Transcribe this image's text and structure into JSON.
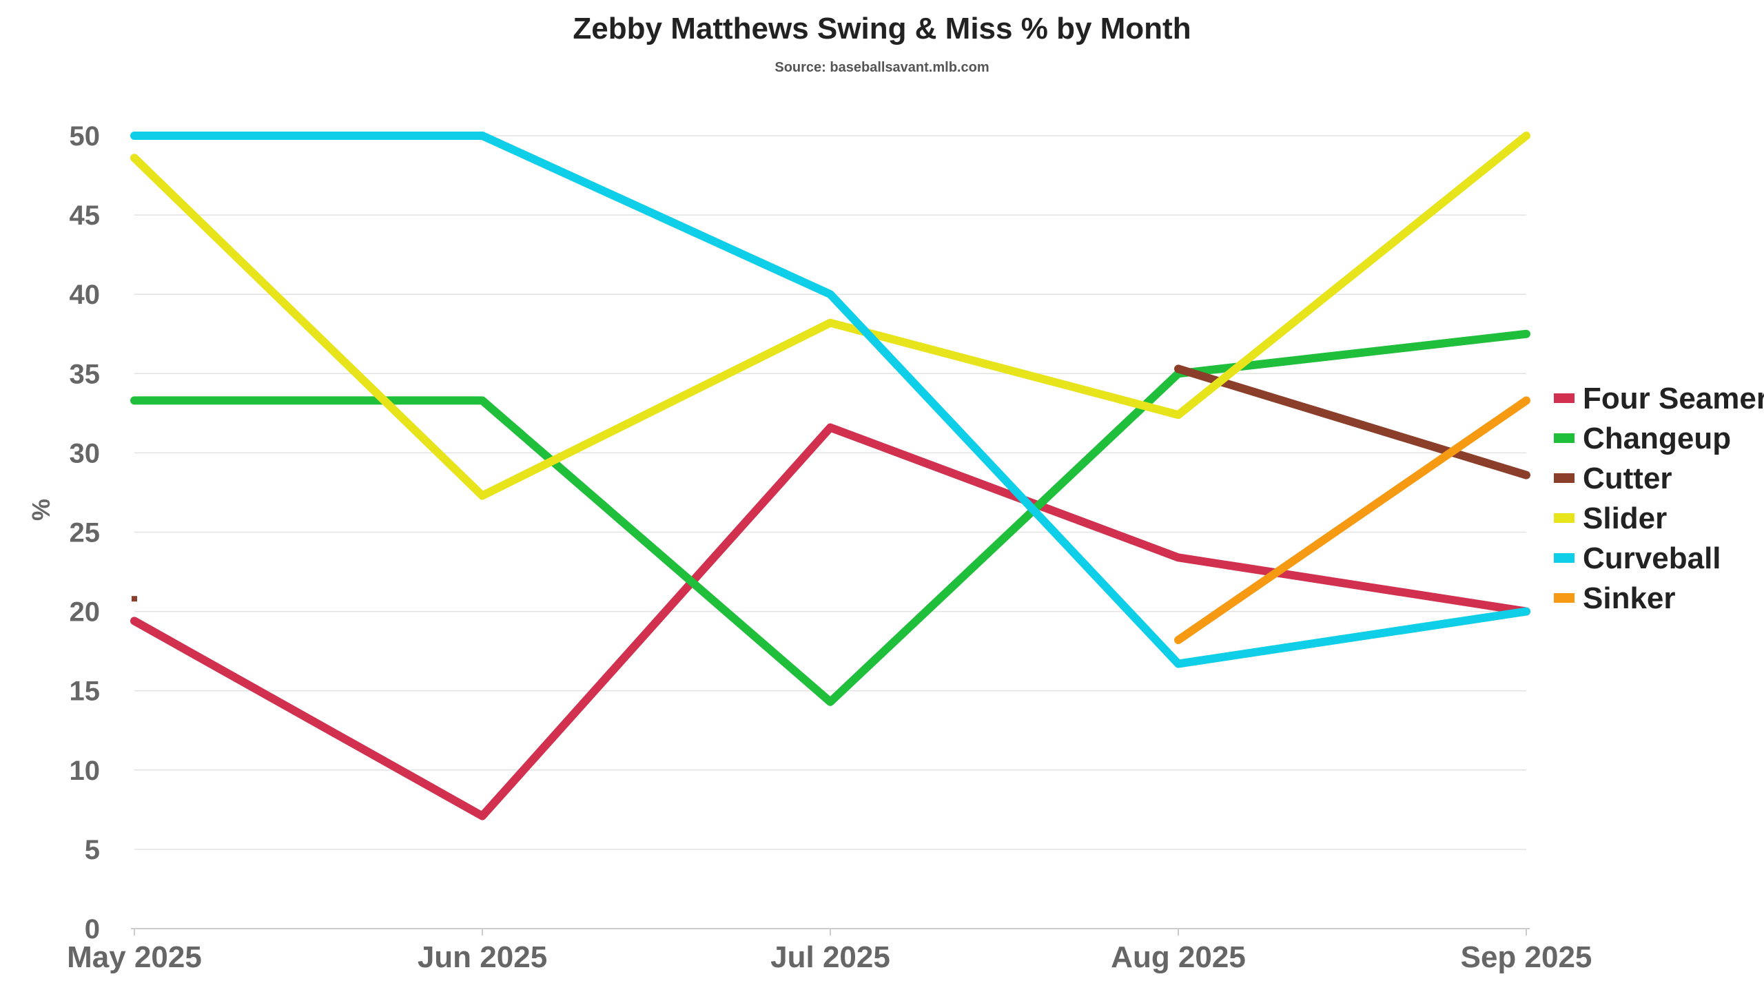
{
  "chart_data": {
    "type": "line",
    "title": "Zebby Matthews Swing & Miss % by Month",
    "subtitle": "Source: baseballsavant.mlb.com",
    "xlabel": "",
    "ylabel": "%",
    "categories": [
      "May 2025",
      "Jun 2025",
      "Jul 2025",
      "Aug 2025",
      "Sep 2025"
    ],
    "yticks": [
      "0",
      "5",
      "10",
      "15",
      "20",
      "25",
      "30",
      "35",
      "40",
      "45",
      "50"
    ],
    "ylim": [
      0,
      50
    ],
    "grid": true,
    "legend": "right",
    "series": [
      {
        "name": "Four Seamer",
        "color": "#d1304e",
        "values": [
          19.4,
          7.1,
          31.6,
          23.4,
          20.0
        ]
      },
      {
        "name": "Changeup",
        "color": "#1fbf3c",
        "values": [
          33.3,
          33.3,
          14.3,
          35.0,
          37.5
        ]
      },
      {
        "name": "Cutter",
        "color": "#8b3e2a",
        "values": [
          20.8,
          null,
          null,
          35.3,
          28.6
        ]
      },
      {
        "name": "Slider",
        "color": "#e8e41c",
        "values": [
          48.6,
          27.3,
          38.2,
          32.4,
          50.0
        ]
      },
      {
        "name": "Curveball",
        "color": "#0fcfe8",
        "values": [
          50.0,
          50.0,
          40.0,
          16.7,
          20.0
        ]
      },
      {
        "name": "Sinker",
        "color": "#f59a12",
        "values": [
          null,
          null,
          null,
          18.2,
          33.3
        ]
      }
    ]
  }
}
